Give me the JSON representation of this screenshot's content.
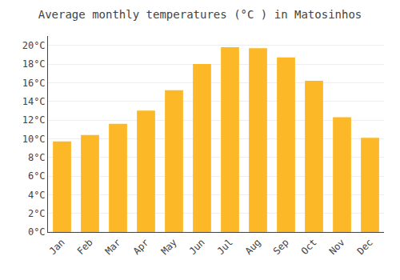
{
  "chart_data": {
    "type": "bar",
    "title": "Average monthly temperatures (°C ) in Matosinhos",
    "categories": [
      "Jan",
      "Feb",
      "Mar",
      "Apr",
      "May",
      "Jun",
      "Jul",
      "Aug",
      "Sep",
      "Oct",
      "Nov",
      "Dec"
    ],
    "values": [
      9.7,
      10.4,
      11.6,
      13.0,
      15.2,
      18.0,
      19.8,
      19.7,
      18.7,
      16.2,
      12.3,
      10.1
    ],
    "color": "#FDB827",
    "ylim": [
      0,
      21
    ],
    "yticks": [
      {
        "value": 0,
        "label": "0°C"
      },
      {
        "value": 2,
        "label": "2°C"
      },
      {
        "value": 4,
        "label": "4°C"
      },
      {
        "value": 6,
        "label": "6°C"
      },
      {
        "value": 8,
        "label": "8°C"
      },
      {
        "value": 10,
        "label": "10°C"
      },
      {
        "value": 12,
        "label": "12°C"
      },
      {
        "value": 14,
        "label": "14°C"
      },
      {
        "value": 16,
        "label": "16°C"
      },
      {
        "value": 18,
        "label": "18°C"
      },
      {
        "value": 20,
        "label": "20°C"
      }
    ],
    "grid": true
  }
}
